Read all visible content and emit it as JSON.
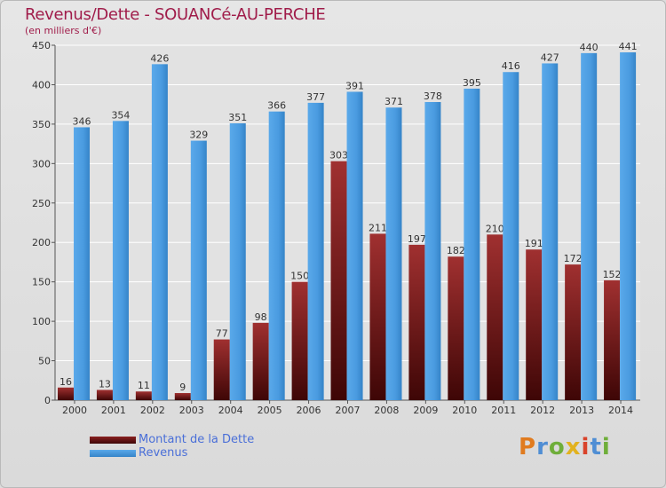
{
  "chart_data": {
    "type": "bar",
    "title": "Revenus/Dette - SOUANCé-AU-PERCHE",
    "subtitle": "(en milliers d'€)",
    "categories": [
      "2000",
      "2001",
      "2002",
      "2003",
      "2004",
      "2005",
      "2006",
      "2007",
      "2008",
      "2009",
      "2010",
      "2011",
      "2012",
      "2013",
      "2014"
    ],
    "series": [
      {
        "name": "Montant de la Dette",
        "color": "#7a1818",
        "values": [
          16,
          13,
          11,
          9,
          77,
          98,
          150,
          303,
          211,
          197,
          182,
          210,
          191,
          172,
          152
        ]
      },
      {
        "name": "Revenus",
        "color": "#4a9be0",
        "values": [
          346,
          354,
          426,
          329,
          351,
          366,
          377,
          391,
          371,
          378,
          395,
          416,
          427,
          440,
          441
        ]
      }
    ],
    "ylim": [
      0,
      450
    ],
    "yticks": [
      0,
      50,
      100,
      150,
      200,
      250,
      300,
      350,
      400,
      450
    ],
    "grid": true,
    "legend_position": "bottom-left"
  },
  "logo": {
    "text": "Proxiti",
    "parts": [
      "P",
      "r",
      "o",
      "x",
      "i",
      "t",
      "i"
    ]
  }
}
